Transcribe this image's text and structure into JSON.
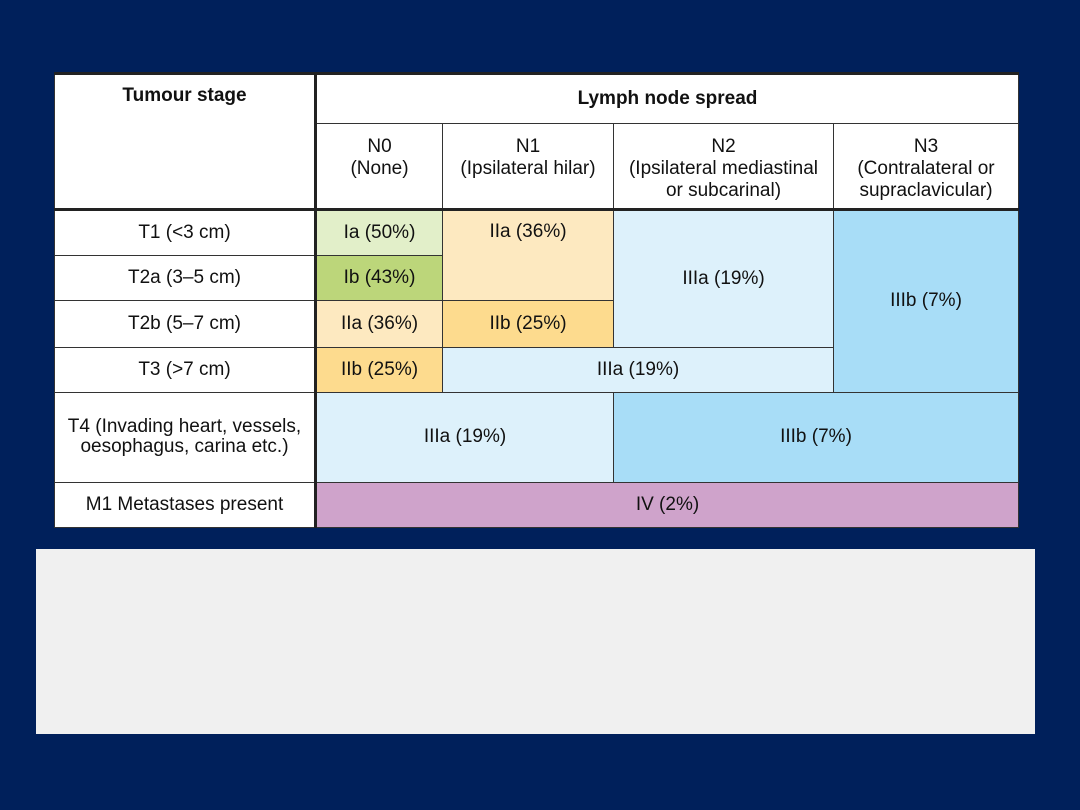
{
  "table": {
    "header": {
      "tumour_stage": "Tumour stage",
      "lymph_node_spread": "Lymph node spread",
      "columns": [
        {
          "code": "N0",
          "desc": "(None)"
        },
        {
          "code": "N1",
          "desc": "(Ipsilateral hilar)"
        },
        {
          "code": "N2",
          "desc": "(Ipsilateral mediastinal or subcarinal)"
        },
        {
          "code": "N3",
          "desc": "(Contralateral or supraclavicular)"
        }
      ]
    },
    "rows": [
      {
        "label": "T1 (<3 cm)"
      },
      {
        "label": "T2a (3–5 cm)"
      },
      {
        "label": "T2b (5–7 cm)"
      },
      {
        "label": "T3 (>7 cm)"
      },
      {
        "label": "T4 (Invading heart, vessels, oesophagus, carina etc.)"
      },
      {
        "label": "M1 Metastases present"
      }
    ],
    "cells": {
      "t1_n0": "Ia (50%)",
      "t1_t2a_n1": "IIa (36%)",
      "t1_t2b_n2": "IIIa (19%)",
      "t1_t3_n3": "IIIb (7%)",
      "t2a_n0": "Ib (43%)",
      "t2b_n0": "IIa (36%)",
      "t2b_n1": "IIb (25%)",
      "t3_n0": "IIb (25%)",
      "t3_n1_n2": "IIIa (19%)",
      "t4_n0_n1": "IIIa (19%)",
      "t4_n2_n3": "IIIb (7%)",
      "m1_all": "IV (2%)"
    },
    "colors": {
      "light_green": "#e2efc9",
      "dark_green": "#bcd67a",
      "light_yellow": "#fde9c0",
      "dark_yellow": "#fddb8e",
      "light_blue": "#ddf1fb",
      "dark_blue": "#a8ddf7",
      "purple": "#cfa3cb",
      "slide_background": "#00205b"
    }
  }
}
